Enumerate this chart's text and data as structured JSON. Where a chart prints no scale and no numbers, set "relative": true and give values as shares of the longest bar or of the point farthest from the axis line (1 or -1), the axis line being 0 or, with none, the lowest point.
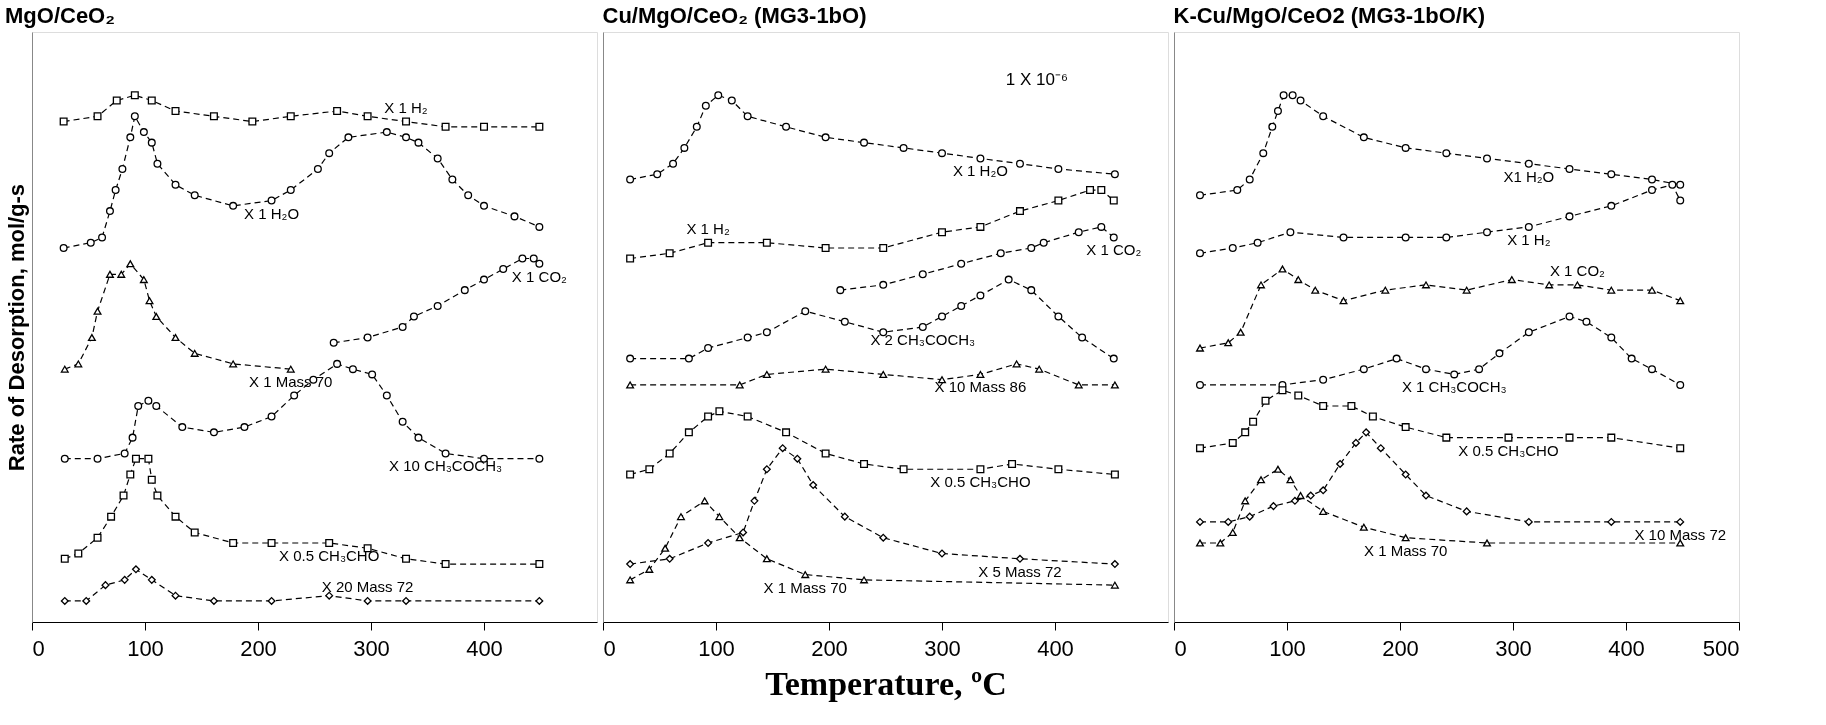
{
  "chart_data": [
    {
      "type": "line",
      "title": "MgO/CeO₂",
      "ylabel": "Rate of Desorption, mol/g-s",
      "relative": true,
      "xlim": [
        0,
        500
      ],
      "xticks": [
        0,
        100,
        200,
        300,
        400
      ],
      "tick_labels": "x",
      "grid": false,
      "line_style": "dashed",
      "series": [
        {
          "name": "X 1  H₂",
          "color": "#000000",
          "marker": "square",
          "x": [
            28,
            58,
            75,
            91,
            106,
            127,
            161,
            195,
            229,
            270,
            297,
            331,
            366,
            400,
            449
          ],
          "values": [
            0.95,
            0.96,
            0.99,
            1.0,
            0.99,
            0.97,
            0.96,
            0.95,
            0.96,
            0.97,
            0.96,
            0.95,
            0.94,
            0.94,
            0.94
          ]
        },
        {
          "name": "X 1  H₂O",
          "color": "#000000",
          "marker": "circle",
          "x": [
            28,
            52,
            62,
            69,
            74,
            80,
            87,
            91,
            99,
            106,
            111,
            127,
            144,
            178,
            212,
            229,
            253,
            263,
            280,
            314,
            331,
            342,
            359,
            372,
            386,
            400,
            427,
            449
          ],
          "values": [
            0.71,
            0.72,
            0.73,
            0.78,
            0.82,
            0.86,
            0.92,
            0.96,
            0.93,
            0.91,
            0.87,
            0.83,
            0.81,
            0.79,
            0.8,
            0.82,
            0.86,
            0.89,
            0.92,
            0.93,
            0.92,
            0.91,
            0.88,
            0.84,
            0.81,
            0.79,
            0.77,
            0.75
          ]
        },
        {
          "name": "X 1  Mass 70",
          "color": "#000000",
          "marker": "triangle",
          "x": [
            29,
            41,
            53,
            58,
            69,
            79,
            87,
            99,
            104,
            110,
            127,
            144,
            178,
            229
          ],
          "values": [
            0.48,
            0.49,
            0.54,
            0.59,
            0.66,
            0.66,
            0.68,
            0.65,
            0.61,
            0.58,
            0.54,
            0.51,
            0.49,
            0.48
          ]
        },
        {
          "name": "X 1  CO₂",
          "color": "#000000",
          "marker": "circle",
          "x": [
            267,
            297,
            328,
            338,
            359,
            383,
            400,
            417,
            434,
            444,
            449
          ],
          "values": [
            0.53,
            0.54,
            0.56,
            0.58,
            0.6,
            0.63,
            0.65,
            0.67,
            0.69,
            0.69,
            0.68
          ]
        },
        {
          "name": "X 10  CH₃COCH₃",
          "color": "#000000",
          "marker": "circle",
          "x": [
            29,
            58,
            82,
            89,
            94,
            103,
            110,
            133,
            161,
            188,
            212,
            232,
            249,
            270,
            284,
            301,
            314,
            328,
            342,
            366,
            400,
            449
          ],
          "values": [
            0.31,
            0.31,
            0.32,
            0.35,
            0.41,
            0.42,
            0.41,
            0.37,
            0.36,
            0.37,
            0.39,
            0.43,
            0.46,
            0.49,
            0.48,
            0.47,
            0.43,
            0.38,
            0.35,
            0.32,
            0.31,
            0.31
          ]
        },
        {
          "name": "X 0.5  CH₃CHO",
          "color": "#000000",
          "marker": "square",
          "x": [
            29,
            41,
            58,
            70,
            81,
            87,
            92,
            103,
            106,
            111,
            127,
            144,
            178,
            212,
            263,
            297,
            331,
            366,
            449
          ],
          "values": [
            0.12,
            0.13,
            0.16,
            0.2,
            0.24,
            0.28,
            0.31,
            0.31,
            0.27,
            0.24,
            0.2,
            0.17,
            0.15,
            0.15,
            0.15,
            0.14,
            0.12,
            0.11,
            0.11
          ]
        },
        {
          "name": "X 20  Mass 72",
          "color": "#000000",
          "marker": "diamond",
          "x": [
            29,
            48,
            65,
            82,
            92,
            106,
            127,
            161,
            212,
            263,
            297,
            331,
            449
          ],
          "values": [
            0.04,
            0.04,
            0.07,
            0.08,
            0.1,
            0.08,
            0.05,
            0.04,
            0.04,
            0.05,
            0.04,
            0.04,
            0.04
          ]
        }
      ]
    },
    {
      "type": "line",
      "title": "Cu/MgO/CeO₂ (MG3-1bO)",
      "xlabel": "Temperature, ºC",
      "relative": true,
      "xlim": [
        0,
        500
      ],
      "xticks": [
        0,
        100,
        200,
        300,
        400
      ],
      "tick_labels": "x",
      "grid": false,
      "line_style": "dashed",
      "series": [
        {
          "name": "X 1  H₂O",
          "color": "#000000",
          "marker": "circle",
          "x": [
            24,
            48,
            62,
            72,
            83,
            91,
            102,
            114,
            128,
            162,
            197,
            231,
            266,
            300,
            334,
            369,
            403,
            453
          ],
          "values": [
            0.84,
            0.85,
            0.87,
            0.9,
            0.94,
            0.98,
            1.0,
            0.99,
            0.96,
            0.94,
            0.92,
            0.91,
            0.9,
            0.89,
            0.88,
            0.87,
            0.86,
            0.85
          ]
        },
        {
          "name": "X 1  H₂",
          "color": "#000000",
          "marker": "square",
          "x": [
            24,
            59,
            93,
            145,
            197,
            248,
            300,
            334,
            369,
            403,
            431,
            441,
            452
          ],
          "values": [
            0.69,
            0.7,
            0.72,
            0.72,
            0.71,
            0.71,
            0.74,
            0.75,
            0.78,
            0.8,
            0.82,
            0.82,
            0.8
          ]
        },
        {
          "name": "X 1 CO₂",
          "color": "#000000",
          "marker": "circle",
          "x": [
            210,
            248,
            283,
            317,
            352,
            379,
            390,
            421,
            441,
            452
          ],
          "values": [
            0.63,
            0.64,
            0.66,
            0.68,
            0.7,
            0.71,
            0.72,
            0.74,
            0.75,
            0.73
          ]
        },
        {
          "name": "X 2  CH₃COCH₃",
          "color": "#000000",
          "marker": "circle",
          "x": [
            24,
            76,
            93,
            128,
            145,
            179,
            214,
            248,
            283,
            300,
            317,
            334,
            359,
            379,
            403,
            424,
            452
          ],
          "values": [
            0.5,
            0.5,
            0.52,
            0.54,
            0.55,
            0.59,
            0.57,
            0.55,
            0.56,
            0.58,
            0.6,
            0.62,
            0.65,
            0.63,
            0.58,
            0.54,
            0.5
          ]
        },
        {
          "name": "X 10   Mass 86",
          "color": "#000000",
          "marker": "triangle",
          "x": [
            24,
            121,
            145,
            197,
            248,
            300,
            334,
            366,
            386,
            421,
            453
          ],
          "values": [
            0.45,
            0.45,
            0.47,
            0.48,
            0.47,
            0.46,
            0.47,
            0.49,
            0.48,
            0.45,
            0.45
          ]
        },
        {
          "name": "X 0.5  CH₃CHO",
          "color": "#000000",
          "marker": "square",
          "x": [
            24,
            41,
            59,
            76,
            93,
            103,
            128,
            162,
            197,
            231,
            266,
            334,
            362,
            403,
            453
          ],
          "values": [
            0.28,
            0.29,
            0.32,
            0.36,
            0.39,
            0.4,
            0.39,
            0.36,
            0.32,
            0.3,
            0.29,
            0.29,
            0.3,
            0.29,
            0.28
          ]
        },
        {
          "name": "X 5  Mass 72",
          "color": "#000000",
          "marker": "diamond",
          "x": [
            24,
            59,
            93,
            124,
            134,
            145,
            159,
            172,
            186,
            214,
            248,
            300,
            369,
            453
          ],
          "values": [
            0.11,
            0.12,
            0.15,
            0.17,
            0.23,
            0.29,
            0.33,
            0.31,
            0.26,
            0.2,
            0.16,
            0.13,
            0.12,
            0.11
          ]
        },
        {
          "name": "X 1  Mass 70",
          "color": "#000000",
          "marker": "triangle",
          "x": [
            24,
            41,
            55,
            69,
            90,
            103,
            121,
            145,
            179,
            231,
            453
          ],
          "values": [
            0.08,
            0.1,
            0.14,
            0.2,
            0.23,
            0.2,
            0.16,
            0.12,
            0.09,
            0.08,
            0.07
          ]
        }
      ],
      "annotations": [
        "1 X 10⁻⁶"
      ]
    },
    {
      "type": "line",
      "title": "K-Cu/MgO/CeO2 (MG3-1bO/K)",
      "relative": true,
      "xlim": [
        0,
        500
      ],
      "xticks": [
        0,
        100,
        200,
        300,
        400,
        500
      ],
      "tick_labels": "x",
      "grid": false,
      "line_style": "dashed",
      "series": [
        {
          "name": "X1 H₂O",
          "color": "#000000",
          "marker": "circle",
          "x": [
            23,
            56,
            67,
            79,
            87,
            92,
            97,
            105,
            112,
            132,
            168,
            205,
            241,
            277,
            314,
            350,
            387,
            423,
            448
          ],
          "values": [
            0.81,
            0.82,
            0.84,
            0.89,
            0.94,
            0.97,
            1.0,
            1.0,
            0.99,
            0.96,
            0.92,
            0.9,
            0.89,
            0.88,
            0.87,
            0.86,
            0.85,
            0.84,
            0.83
          ]
        },
        {
          "name": "X 1  H₂",
          "color": "#000000",
          "marker": "circle",
          "x": [
            23,
            52,
            74,
            103,
            150,
            205,
            241,
            277,
            314,
            350,
            387,
            423,
            441,
            448
          ],
          "values": [
            0.7,
            0.71,
            0.72,
            0.74,
            0.73,
            0.73,
            0.73,
            0.74,
            0.75,
            0.77,
            0.79,
            0.82,
            0.83,
            0.8
          ]
        },
        {
          "name": "X 1 CO₂",
          "color": "#000000",
          "marker": "triangle",
          "x": [
            23,
            48,
            59,
            77,
            96,
            110,
            125,
            150,
            187,
            223,
            259,
            299,
            332,
            357,
            387,
            423,
            448
          ],
          "values": [
            0.52,
            0.53,
            0.55,
            0.64,
            0.67,
            0.65,
            0.63,
            0.61,
            0.63,
            0.64,
            0.63,
            0.65,
            0.64,
            0.64,
            0.63,
            0.63,
            0.61
          ]
        },
        {
          "name": "X 1 CH₃COCH₃",
          "color": "#000000",
          "marker": "circle",
          "x": [
            23,
            96,
            132,
            168,
            197,
            223,
            248,
            270,
            288,
            314,
            350,
            365,
            387,
            405,
            423,
            448
          ],
          "values": [
            0.45,
            0.45,
            0.46,
            0.48,
            0.5,
            0.48,
            0.47,
            0.48,
            0.51,
            0.55,
            0.58,
            0.57,
            0.54,
            0.5,
            0.48,
            0.45
          ]
        },
        {
          "name": "X 0.5  CH₃CHO",
          "color": "#000000",
          "marker": "square",
          "x": [
            23,
            52,
            63,
            70,
            81,
            96,
            110,
            132,
            157,
            176,
            205,
            241,
            296,
            350,
            387,
            448
          ],
          "values": [
            0.33,
            0.34,
            0.36,
            0.38,
            0.42,
            0.44,
            0.43,
            0.41,
            0.41,
            0.39,
            0.37,
            0.35,
            0.35,
            0.35,
            0.35,
            0.33
          ]
        },
        {
          "name": "X 10  Mass 72",
          "color": "#000000",
          "marker": "diamond",
          "x": [
            23,
            48,
            67,
            88,
            107,
            121,
            132,
            147,
            161,
            170,
            183,
            205,
            223,
            259,
            314,
            387,
            448
          ],
          "values": [
            0.19,
            0.19,
            0.2,
            0.22,
            0.23,
            0.24,
            0.25,
            0.3,
            0.34,
            0.36,
            0.33,
            0.28,
            0.24,
            0.21,
            0.19,
            0.19,
            0.19
          ]
        },
        {
          "name": "X 1  Mass 70",
          "color": "#000000",
          "marker": "triangle",
          "x": [
            23,
            41,
            52,
            63,
            77,
            92,
            103,
            112,
            132,
            168,
            205,
            277,
            448
          ],
          "values": [
            0.15,
            0.15,
            0.17,
            0.23,
            0.27,
            0.29,
            0.27,
            0.24,
            0.21,
            0.18,
            0.16,
            0.15,
            0.15
          ]
        }
      ]
    }
  ]
}
